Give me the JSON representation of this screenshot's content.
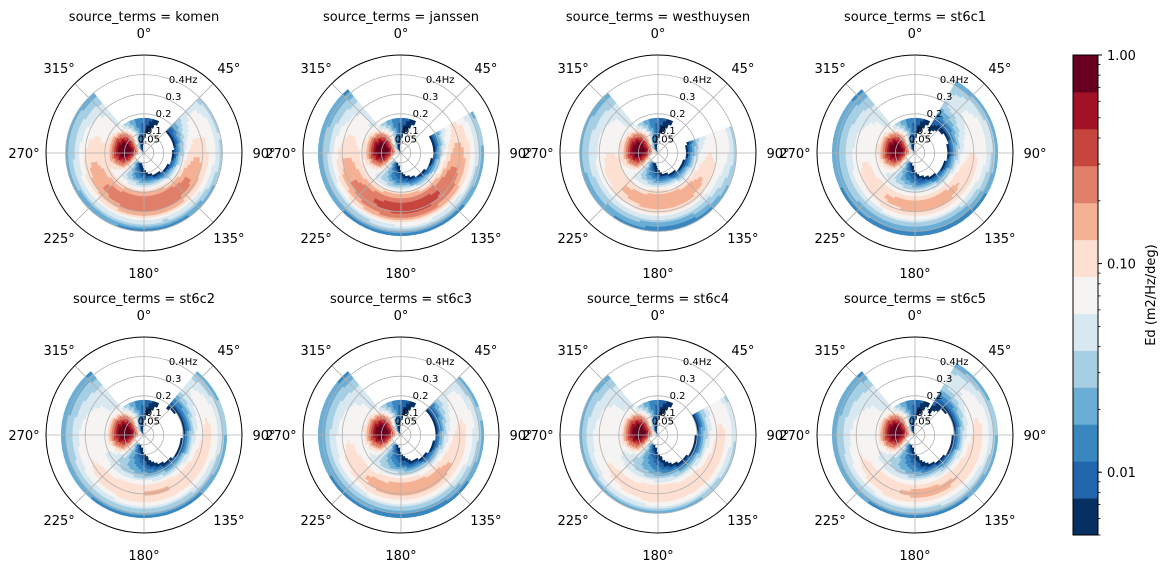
{
  "chart_data": {
    "type": "heatmap",
    "projection": "polar",
    "direction_convention": "clockwise from north (0° at top)",
    "facet_label_prefix": "source_terms = ",
    "facets": [
      "komen",
      "janssen",
      "westhuysen",
      "st6c1",
      "st6c2",
      "st6c3",
      "st6c4",
      "st6c5"
    ],
    "angular_ticks": [
      0,
      45,
      90,
      135,
      180,
      225,
      270,
      315
    ],
    "angular_tick_labels": [
      "0°",
      "45°",
      "90°",
      "135°",
      "180°",
      "225°",
      "270°",
      "315°"
    ],
    "radial_axis": {
      "variable": "frequency",
      "unit": "Hz",
      "range": [
        0,
        0.5
      ],
      "ticks": [
        0.05,
        0.1,
        0.2,
        0.3,
        0.4
      ],
      "tick_labels": [
        "0.05",
        "0.1",
        "0.2",
        "0.3",
        "0.4Hz"
      ],
      "label_direction_deg": 30
    },
    "colorbar": {
      "label": "Ed (m2/Hz/deg)",
      "scale": "log",
      "range": [
        0.005,
        1.0
      ],
      "levels": 12,
      "tick_values": [
        0.01,
        0.1,
        1.0
      ],
      "tick_labels": [
        "0.01",
        "0.10",
        "1.00"
      ],
      "colors": [
        "#053061",
        "#2166ac",
        "#3a87c0",
        "#6aaed6",
        "#a7cfe4",
        "#d8e8f1",
        "#f6f4f2",
        "#fde0d2",
        "#f5b194",
        "#e07f6a",
        "#c6463f",
        "#a31328",
        "#67001f"
      ]
    },
    "spectra": [
      {
        "name": "komen",
        "peak_dir_deg": 280,
        "peak_freq_hz": 0.1,
        "swell": {
          "center_dir_deg": 170,
          "freq_hz": 0.26,
          "peak_level": 0.28
        },
        "arc_range_deg": [
          45,
          270
        ],
        "outer_rim_freq_hz": 0.4
      },
      {
        "name": "janssen",
        "peak_dir_deg": 280,
        "peak_freq_hz": 0.1,
        "swell": {
          "center_dir_deg": 170,
          "freq_hz": 0.28,
          "peak_level": 0.35
        },
        "arc_range_deg": [
          60,
          270
        ],
        "outer_rim_freq_hz": 0.42
      },
      {
        "name": "westhuysen",
        "peak_dir_deg": 280,
        "peak_freq_hz": 0.1,
        "swell": {
          "center_dir_deg": 165,
          "freq_hz": 0.25,
          "peak_level": 0.17
        },
        "arc_range_deg": [
          70,
          270
        ],
        "outer_rim_freq_hz": 0.4
      },
      {
        "name": "st6c1",
        "peak_dir_deg": 280,
        "peak_freq_hz": 0.1,
        "swell": {
          "center_dir_deg": 165,
          "freq_hz": 0.27,
          "peak_level": 0.15
        },
        "arc_range_deg": [
          30,
          270
        ],
        "outer_rim_freq_hz": 0.42
      },
      {
        "name": "st6c2",
        "peak_dir_deg": 280,
        "peak_freq_hz": 0.1,
        "swell": {
          "center_dir_deg": 165,
          "freq_hz": 0.3,
          "peak_level": 0.12
        },
        "arc_range_deg": [
          40,
          270
        ],
        "outer_rim_freq_hz": 0.42
      },
      {
        "name": "st6c3",
        "peak_dir_deg": 280,
        "peak_freq_hz": 0.1,
        "swell": {
          "center_dir_deg": 165,
          "freq_hz": 0.28,
          "peak_level": 0.16
        },
        "arc_range_deg": [
          45,
          270
        ],
        "outer_rim_freq_hz": 0.42
      },
      {
        "name": "st6c4",
        "peak_dir_deg": 280,
        "peak_freq_hz": 0.1,
        "swell": {
          "center_dir_deg": 165,
          "freq_hz": 0.3,
          "peak_level": 0.11
        },
        "arc_range_deg": [
          60,
          270
        ],
        "outer_rim_freq_hz": 0.4
      },
      {
        "name": "st6c5",
        "peak_dir_deg": 280,
        "peak_freq_hz": 0.1,
        "swell": {
          "center_dir_deg": 165,
          "freq_hz": 0.3,
          "peak_level": 0.13
        },
        "arc_range_deg": [
          30,
          270
        ],
        "outer_rim_freq_hz": 0.42
      }
    ]
  }
}
